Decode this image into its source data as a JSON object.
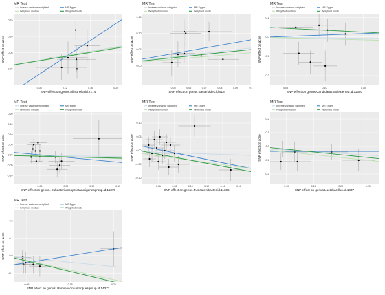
{
  "legend": {
    "title": "MR Test",
    "methods": [
      {
        "name": "Inverse variance weighted",
        "color": "#c9dbe6"
      },
      {
        "name": "MR Egger",
        "color": "#3d84cc"
      },
      {
        "name": "Weighted median",
        "color": "#bfe0b2"
      },
      {
        "name": "Weighted mode",
        "color": "#2e9a42"
      }
    ]
  },
  "ylabel": "SNP effect on acne",
  "chart_data": [
    {
      "type": "scatter",
      "xlabel": "SNP effect on genus.Allisonella.id.2174",
      "xlim": [
        0.04,
        0.21
      ],
      "ylim": [
        -0.05,
        0.17
      ],
      "xticks": [
        "0.08",
        "0.12",
        "0.16",
        "0.20"
      ],
      "xtick_values": [
        0.08,
        0.12,
        0.16,
        0.2
      ],
      "yticks": [
        "0.00",
        "0.05",
        "0.10",
        "0.15"
      ],
      "ytick_values": [
        0.0,
        0.05,
        0.1,
        0.15
      ],
      "points": [
        {
          "x": 0.115,
          "y": 0.005,
          "xerr": 0.04,
          "yerr": 0.04
        },
        {
          "x": 0.125,
          "y": 0.035,
          "xerr": 0.03,
          "yerr": 0.05
        },
        {
          "x": 0.137,
          "y": 0.12,
          "xerr": 0.022,
          "yerr": 0.03
        },
        {
          "x": 0.138,
          "y": 0.03,
          "xerr": 0.03,
          "yerr": 0.04
        },
        {
          "x": 0.139,
          "y": 0.0,
          "xerr": 0.02,
          "yerr": 0.03
        },
        {
          "x": 0.155,
          "y": 0.072,
          "xerr": 0.02,
          "yerr": 0.05
        }
      ],
      "lines": [
        {
          "method": "Inverse variance weighted",
          "slope": 0.34,
          "intercept": 0
        },
        {
          "method": "MR Egger",
          "slope": 1.3,
          "intercept": -0.12
        },
        {
          "method": "Weighted median",
          "slope": 0.33,
          "intercept": 0
        },
        {
          "method": "Weighted mode",
          "slope": 0.32,
          "intercept": 0
        }
      ]
    },
    {
      "type": "scatter",
      "xlabel": "SNP effect on genus.Bacteroides.id.918",
      "xlim": [
        0.03,
        0.1
      ],
      "ylim": [
        -0.06,
        0.16
      ],
      "xticks": [
        "0.05",
        "0.06",
        "0.07",
        "0.08",
        "0.09",
        "0.1"
      ],
      "xtick_values": [
        0.05,
        0.06,
        0.07,
        0.08,
        0.09,
        0.1
      ],
      "yticks": [
        "0.00",
        "0.05",
        "0.10",
        "0.15"
      ],
      "ytick_values": [
        0.0,
        0.05,
        0.1,
        0.15
      ],
      "points": [
        {
          "x": 0.049,
          "y": 0.01,
          "xerr": 0.006,
          "yerr": 0.04
        },
        {
          "x": 0.053,
          "y": 0.035,
          "xerr": 0.006,
          "yerr": 0.04
        },
        {
          "x": 0.057,
          "y": 0.038,
          "xerr": 0.007,
          "yerr": 0.03
        },
        {
          "x": 0.057,
          "y": 0.105,
          "xerr": 0.008,
          "yerr": 0.04
        },
        {
          "x": 0.058,
          "y": 0.1,
          "xerr": 0.01,
          "yerr": 0.03
        },
        {
          "x": 0.068,
          "y": 0.03,
          "xerr": 0.01,
          "yerr": 0.04
        },
        {
          "x": 0.073,
          "y": 0.105,
          "xerr": 0.015,
          "yerr": 0.03
        },
        {
          "x": 0.082,
          "y": 0.02,
          "xerr": 0.01,
          "yerr": 0.04
        }
      ],
      "lines": [
        {
          "method": "Inverse variance weighted",
          "slope": 0.55,
          "intercept": 0
        },
        {
          "method": "MR Egger",
          "slope": 0.85,
          "intercept": -0.005
        },
        {
          "method": "Weighted median",
          "slope": 0.4,
          "intercept": 0
        },
        {
          "method": "Weighted mode",
          "slope": 0.5,
          "intercept": 0
        }
      ]
    },
    {
      "type": "scatter",
      "xlabel": "SNP effect on genus.Candidatus.Soleaferrea.id.11350",
      "xlim": [
        0.03,
        0.17
      ],
      "ylim": [
        -0.25,
        0.12
      ],
      "xticks": [
        "0.05",
        "0.10",
        "0.15"
      ],
      "xtick_values": [
        0.05,
        0.1,
        0.15
      ],
      "yticks": [
        "-0.2",
        "-0.1",
        "0.0",
        "0.1"
      ],
      "ytick_values": [
        -0.2,
        -0.1,
        0.0,
        0.1
      ],
      "points": [
        {
          "x": 0.063,
          "y": 0.05,
          "xerr": 0.022,
          "yerr": 0.06
        },
        {
          "x": 0.067,
          "y": -0.085,
          "xerr": 0.02,
          "yerr": 0.06
        },
        {
          "x": 0.082,
          "y": -0.13,
          "xerr": 0.015,
          "yerr": 0.06
        },
        {
          "x": 0.093,
          "y": 0.06,
          "xerr": 0.02,
          "yerr": 0.06
        },
        {
          "x": 0.101,
          "y": -0.15,
          "xerr": 0.015,
          "yerr": 0.08
        },
        {
          "x": 0.104,
          "y": 0.035,
          "xerr": 0.022,
          "yerr": 0.06
        },
        {
          "x": 0.127,
          "y": 0.015,
          "xerr": 0.025,
          "yerr": 0.06
        }
      ],
      "lines": [
        {
          "method": "Inverse variance weighted",
          "slope": -0.05,
          "intercept": 0
        },
        {
          "method": "MR Egger",
          "slope": 0.15,
          "intercept": -0.005
        },
        {
          "method": "Weighted median",
          "slope": -0.1,
          "intercept": 0
        },
        {
          "method": "Weighted mode",
          "slope": -0.2,
          "intercept": 0.055
        }
      ]
    },
    {
      "type": "scatter",
      "xlabel": "SNP effect on genus..Eubacteriumcoprostanoligenesgroup.id.11375",
      "xlim": [
        0.03,
        0.155
      ],
      "ylim": [
        -0.14,
        0.21
      ],
      "xticks": [
        "0.06",
        "0.09",
        "0.12",
        "0.15"
      ],
      "xtick_values": [
        0.06,
        0.09,
        0.12,
        0.15
      ],
      "yticks": [
        "-0.10",
        "-0.05",
        "0.00",
        "0.05",
        "0.10",
        "0.15",
        "0.20"
      ],
      "ytick_values": [
        -0.1,
        -0.05,
        0.0,
        0.05,
        0.1,
        0.15,
        0.2
      ],
      "points": [
        {
          "x": 0.05,
          "y": -0.01,
          "xerr": 0.008,
          "yerr": 0.03
        },
        {
          "x": 0.052,
          "y": 0.03,
          "xerr": 0.008,
          "yerr": 0.02
        },
        {
          "x": 0.053,
          "y": 0.05,
          "xerr": 0.008,
          "yerr": 0.03
        },
        {
          "x": 0.055,
          "y": 0.02,
          "xerr": 0.008,
          "yerr": 0.03
        },
        {
          "x": 0.056,
          "y": -0.03,
          "xerr": 0.008,
          "yerr": 0.03
        },
        {
          "x": 0.058,
          "y": 0.06,
          "xerr": 0.01,
          "yerr": 0.02
        },
        {
          "x": 0.06,
          "y": 0.02,
          "xerr": 0.01,
          "yerr": 0.03
        },
        {
          "x": 0.06,
          "y": -0.005,
          "xerr": 0.01,
          "yerr": 0.03
        },
        {
          "x": 0.078,
          "y": -0.01,
          "xerr": 0.012,
          "yerr": 0.03
        },
        {
          "x": 0.08,
          "y": -0.07,
          "xerr": 0.012,
          "yerr": 0.04
        },
        {
          "x": 0.083,
          "y": -0.05,
          "xerr": 0.012,
          "yerr": 0.04
        },
        {
          "x": 0.085,
          "y": -0.03,
          "xerr": 0.015,
          "yerr": 0.04
        },
        {
          "x": 0.128,
          "y": 0.08,
          "xerr": 0.03,
          "yerr": 0.09
        }
      ],
      "lines": [
        {
          "method": "Inverse variance weighted",
          "slope": -0.05,
          "intercept": 0
        },
        {
          "method": "MR Egger",
          "slope": -0.4,
          "intercept": 0.025
        },
        {
          "method": "Weighted median",
          "slope": -0.15,
          "intercept": 0.005
        },
        {
          "method": "Weighted mode",
          "slope": -0.1,
          "intercept": 0
        }
      ]
    },
    {
      "type": "scatter",
      "xlabel": "SNP effect on genus.Fusicatenibacter.id.11305",
      "xlim": [
        0.04,
        0.175
      ],
      "ylim": [
        -0.12,
        0.14
      ],
      "xticks": [
        "0.06",
        "0.08",
        "0.10",
        "0.12",
        "0.14",
        "0.16"
      ],
      "xtick_values": [
        0.06,
        0.08,
        0.1,
        0.12,
        0.14,
        0.16
      ],
      "yticks": [
        "-0.10",
        "-0.05",
        "0.00",
        "0.05",
        "0.10"
      ],
      "ytick_values": [
        -0.1,
        -0.05,
        0.0,
        0.05,
        0.1
      ],
      "points": [
        {
          "x": 0.048,
          "y": 0.02,
          "xerr": 0.008,
          "yerr": 0.03
        },
        {
          "x": 0.049,
          "y": -0.03,
          "xerr": 0.008,
          "yerr": 0.03
        },
        {
          "x": 0.052,
          "y": -0.01,
          "xerr": 0.008,
          "yerr": 0.03
        },
        {
          "x": 0.055,
          "y": 0.04,
          "xerr": 0.01,
          "yerr": 0.03
        },
        {
          "x": 0.058,
          "y": 0.01,
          "xerr": 0.01,
          "yerr": 0.03
        },
        {
          "x": 0.06,
          "y": -0.04,
          "xerr": 0.01,
          "yerr": 0.03
        },
        {
          "x": 0.062,
          "y": 0.05,
          "xerr": 0.01,
          "yerr": 0.03
        },
        {
          "x": 0.065,
          "y": -0.02,
          "xerr": 0.01,
          "yerr": 0.03
        },
        {
          "x": 0.068,
          "y": 0.0,
          "xerr": 0.012,
          "yerr": 0.03
        },
        {
          "x": 0.07,
          "y": 0.03,
          "xerr": 0.012,
          "yerr": 0.03
        },
        {
          "x": 0.073,
          "y": -0.06,
          "xerr": 0.012,
          "yerr": 0.03
        },
        {
          "x": 0.075,
          "y": 0.02,
          "xerr": 0.012,
          "yerr": 0.03
        },
        {
          "x": 0.08,
          "y": -0.01,
          "xerr": 0.012,
          "yerr": 0.03
        },
        {
          "x": 0.085,
          "y": -0.05,
          "xerr": 0.015,
          "yerr": 0.03
        },
        {
          "x": 0.105,
          "y": 0.09,
          "xerr": 0.02,
          "yerr": 0.04
        },
        {
          "x": 0.15,
          "y": -0.07,
          "xerr": 0.015,
          "yerr": 0.04
        }
      ],
      "lines": [
        {
          "method": "Inverse variance weighted",
          "slope": -0.1,
          "intercept": 0
        },
        {
          "method": "MR Egger",
          "slope": -0.6,
          "intercept": 0.04
        },
        {
          "method": "Weighted median",
          "slope": -0.4,
          "intercept": 0.005
        },
        {
          "method": "Weighted mode",
          "slope": -0.55,
          "intercept": 0.02
        }
      ]
    },
    {
      "type": "scatter",
      "xlabel": "SNP effect on genus.Lactobacillus.id.1837",
      "xlim": [
        0.07,
        0.27
      ],
      "ylim": [
        -0.27,
        0.25
      ],
      "xticks": [
        "0.10",
        "0.15",
        "0.20",
        "0.25"
      ],
      "xtick_values": [
        0.1,
        0.15,
        0.2,
        0.25
      ],
      "yticks": [
        "-0.2",
        "-0.1",
        "0.0",
        "0.1",
        "0.2"
      ],
      "ytick_values": [
        -0.2,
        -0.1,
        0.0,
        0.1,
        0.2
      ],
      "points": [
        {
          "x": 0.09,
          "y": -0.11,
          "xerr": 0.02,
          "yerr": 0.06
        },
        {
          "x": 0.092,
          "y": -0.02,
          "xerr": 0.02,
          "yerr": 0.06
        },
        {
          "x": 0.115,
          "y": -0.04,
          "xerr": 0.025,
          "yerr": 0.07
        },
        {
          "x": 0.12,
          "y": -0.11,
          "xerr": 0.025,
          "yerr": 0.07
        },
        {
          "x": 0.183,
          "y": -0.04,
          "xerr": 0.03,
          "yerr": 0.06
        },
        {
          "x": 0.233,
          "y": -0.1,
          "xerr": 0.03,
          "yerr": 0.08
        }
      ],
      "lines": [
        {
          "method": "Inverse variance weighted",
          "slope": -0.25,
          "intercept": 0
        },
        {
          "method": "MR Egger",
          "slope": 0.0,
          "intercept": -0.035
        },
        {
          "method": "Weighted median",
          "slope": -0.4,
          "intercept": 0
        },
        {
          "method": "Weighted mode",
          "slope": -0.4,
          "intercept": 0.02
        }
      ]
    },
    {
      "type": "scatter",
      "xlabel": "SNP effect on genus..Ruminococcustorquesgroup.id.14377",
      "xlim": [
        0.02,
        0.27
      ],
      "ylim": [
        -0.15,
        0.26
      ],
      "xticks": [
        "0.05",
        "0.15",
        "0.25"
      ],
      "xtick_values": [
        0.05,
        0.15,
        0.25
      ],
      "yticks": [
        "-0.1",
        "0.0",
        "0.1",
        "0.2"
      ],
      "ytick_values": [
        -0.1,
        0.0,
        0.1,
        0.2
      ],
      "points": [
        {
          "x": 0.04,
          "y": -0.01,
          "xerr": 0.02,
          "yerr": 0.04
        },
        {
          "x": 0.043,
          "y": -0.05,
          "xerr": 0.02,
          "yerr": 0.05
        },
        {
          "x": 0.048,
          "y": -0.04,
          "xerr": 0.02,
          "yerr": 0.06
        },
        {
          "x": 0.065,
          "y": -0.05,
          "xerr": 0.025,
          "yerr": 0.05
        },
        {
          "x": 0.08,
          "y": -0.06,
          "xerr": 0.025,
          "yerr": 0.06
        },
        {
          "x": 0.25,
          "y": 0.04,
          "xerr": 0.03,
          "yerr": 0.1
        }
      ],
      "lines": [
        {
          "method": "Inverse variance weighted",
          "slope": -0.25,
          "intercept": 0
        },
        {
          "method": "MR Egger",
          "slope": 0.4,
          "intercept": -0.06
        },
        {
          "method": "Weighted median",
          "slope": -0.55,
          "intercept": 0
        },
        {
          "method": "Weighted mode",
          "slope": -0.6,
          "intercept": 0
        }
      ]
    }
  ]
}
